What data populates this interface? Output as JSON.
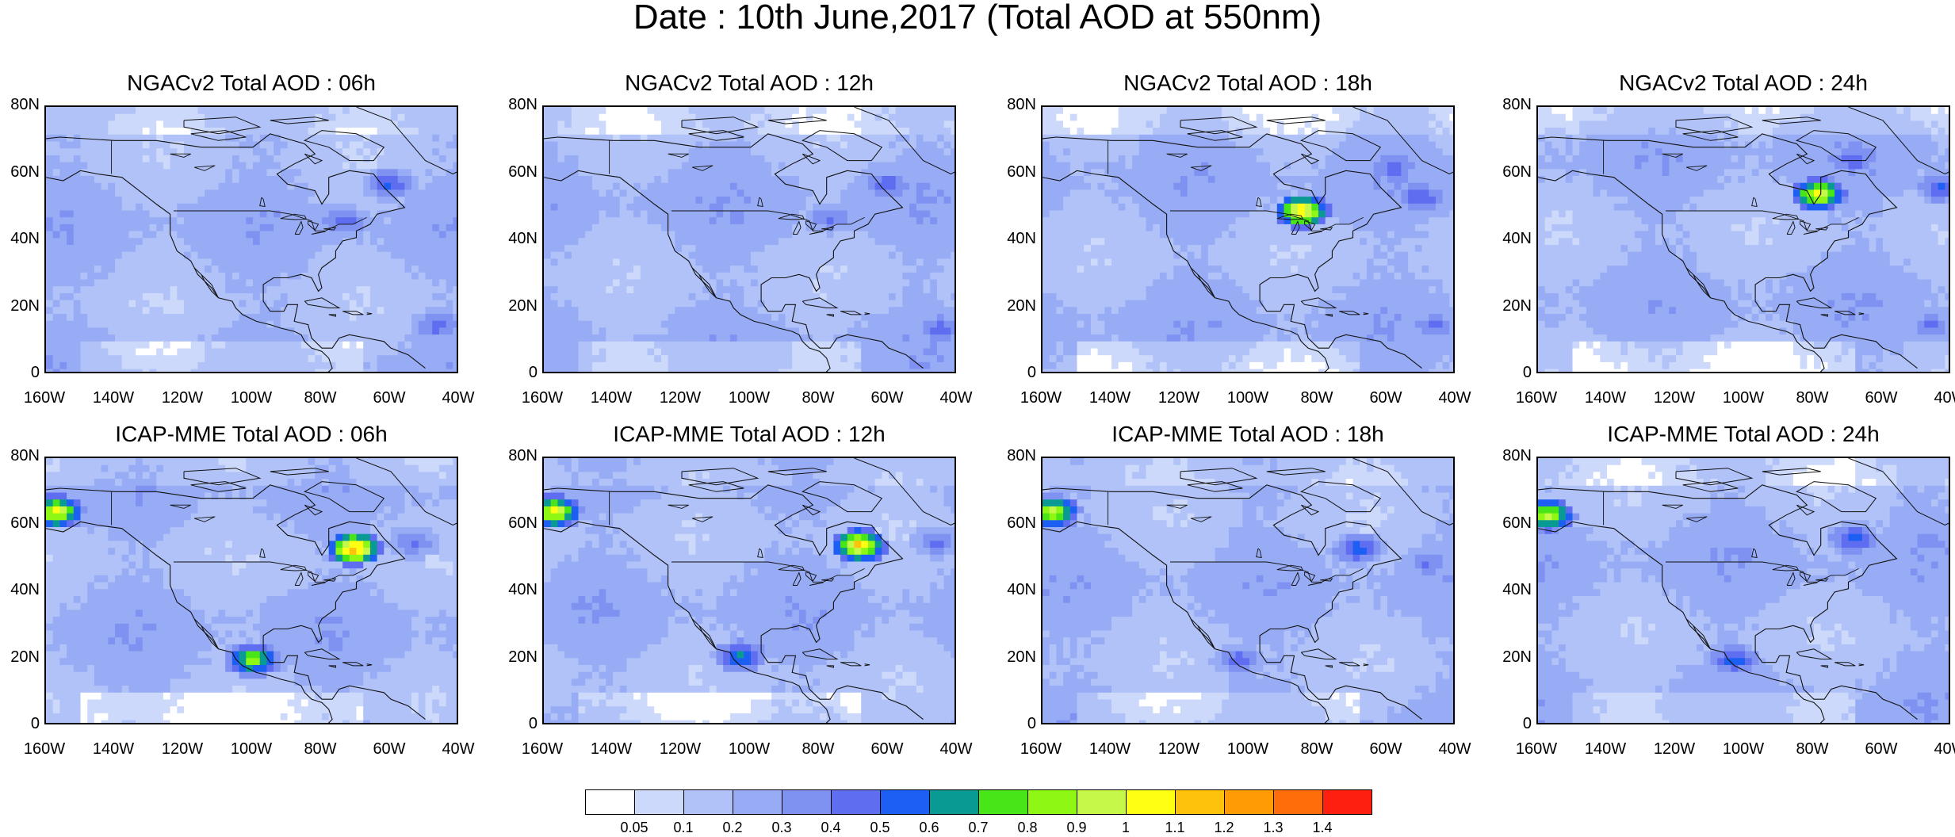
{
  "title": "Date : 10th June,2017 (Total AOD at 550nm)",
  "axes": {
    "lat_labels": [
      "80N",
      "60N",
      "40N",
      "20N",
      "0"
    ],
    "lon_labels": [
      "160W",
      "140W",
      "120W",
      "100W",
      "80W",
      "60W",
      "40W"
    ],
    "lat_range": [
      0,
      80
    ],
    "lon_range": [
      -160,
      -40
    ]
  },
  "panels": [
    {
      "title": "NGACv2 Total AOD : 06h",
      "model": "NGACv2",
      "hour": "06h",
      "dominant_aod": 0.2,
      "features": [
        {
          "lon": -62,
          "lat": 57,
          "aod": 0.45
        },
        {
          "lon": -48,
          "lat": 15,
          "aod": 0.4
        },
        {
          "lon": -75,
          "lat": 46,
          "aod": 0.4
        }
      ]
    },
    {
      "title": "NGACv2 Total AOD : 12h",
      "model": "NGACv2",
      "hour": "12h",
      "dominant_aod": 0.2,
      "features": [
        {
          "lon": -62,
          "lat": 57,
          "aod": 0.4
        },
        {
          "lon": -47,
          "lat": 14,
          "aod": 0.4
        },
        {
          "lon": -78,
          "lat": 47,
          "aod": 0.35
        }
      ]
    },
    {
      "title": "NGACv2 Total AOD : 18h",
      "model": "NGACv2",
      "hour": "18h",
      "dominant_aod": 0.2,
      "features": [
        {
          "lon": -86,
          "lat": 49,
          "aod": 1.1
        },
        {
          "lon": -52,
          "lat": 53,
          "aod": 0.45
        },
        {
          "lon": -60,
          "lat": 62,
          "aod": 0.4
        },
        {
          "lon": -48,
          "lat": 15,
          "aod": 0.35
        }
      ]
    },
    {
      "title": "NGACv2 Total AOD : 24h",
      "model": "NGACv2",
      "hour": "24h",
      "dominant_aod": 0.2,
      "features": [
        {
          "lon": -80,
          "lat": 54,
          "aod": 1.0
        },
        {
          "lon": -45,
          "lat": 56,
          "aod": 0.45
        },
        {
          "lon": -70,
          "lat": 64,
          "aod": 0.4
        },
        {
          "lon": -48,
          "lat": 15,
          "aod": 0.35
        }
      ]
    },
    {
      "title": "ICAP-MME Total AOD : 06h",
      "model": "ICAP-MME",
      "hour": "06h",
      "dominant_aod": 0.2,
      "features": [
        {
          "lon": -157,
          "lat": 64,
          "aod": 1.0
        },
        {
          "lon": -72,
          "lat": 53,
          "aod": 1.2
        },
        {
          "lon": -101,
          "lat": 20,
          "aod": 0.8
        },
        {
          "lon": -55,
          "lat": 55,
          "aod": 0.35
        }
      ]
    },
    {
      "title": "ICAP-MME Total AOD : 12h",
      "model": "ICAP-MME",
      "hour": "12h",
      "dominant_aod": 0.2,
      "features": [
        {
          "lon": -157,
          "lat": 64,
          "aod": 1.0
        },
        {
          "lon": -70,
          "lat": 54,
          "aod": 1.1
        },
        {
          "lon": -104,
          "lat": 21,
          "aod": 0.6
        },
        {
          "lon": -48,
          "lat": 55,
          "aod": 0.35
        }
      ]
    },
    {
      "title": "ICAP-MME Total AOD : 18h",
      "model": "ICAP-MME",
      "hour": "18h",
      "dominant_aod": 0.2,
      "features": [
        {
          "lon": -157,
          "lat": 64,
          "aod": 0.9
        },
        {
          "lon": -70,
          "lat": 53,
          "aod": 0.5
        },
        {
          "lon": -104,
          "lat": 20,
          "aod": 0.4
        },
        {
          "lon": -50,
          "lat": 49,
          "aod": 0.35
        }
      ]
    },
    {
      "title": "ICAP-MME Total AOD : 24h",
      "model": "ICAP-MME",
      "hour": "24h",
      "dominant_aod": 0.2,
      "features": [
        {
          "lon": -157,
          "lat": 63,
          "aod": 0.9
        },
        {
          "lon": -70,
          "lat": 56,
          "aod": 0.5
        },
        {
          "lon": -104,
          "lat": 20,
          "aod": 0.5
        },
        {
          "lon": -48,
          "lat": 55,
          "aod": 0.3
        }
      ]
    }
  ],
  "colorbar": {
    "labels": [
      "0.05",
      "0.1",
      "0.2",
      "0.3",
      "0.4",
      "0.5",
      "0.6",
      "0.7",
      "0.8",
      "0.9",
      "1",
      "1.1",
      "1.2",
      "1.3",
      "1.4"
    ],
    "colors": [
      "#ffffff",
      "#cdd9fb",
      "#b0c2f8",
      "#97acf5",
      "#7f92f2",
      "#5f6df0",
      "#1d5ef3",
      "#0a9a94",
      "#48e619",
      "#8ef714",
      "#c6f84a",
      "#ffff14",
      "#ffc20c",
      "#ff9c05",
      "#ff6c0a",
      "#ff1f10"
    ]
  }
}
